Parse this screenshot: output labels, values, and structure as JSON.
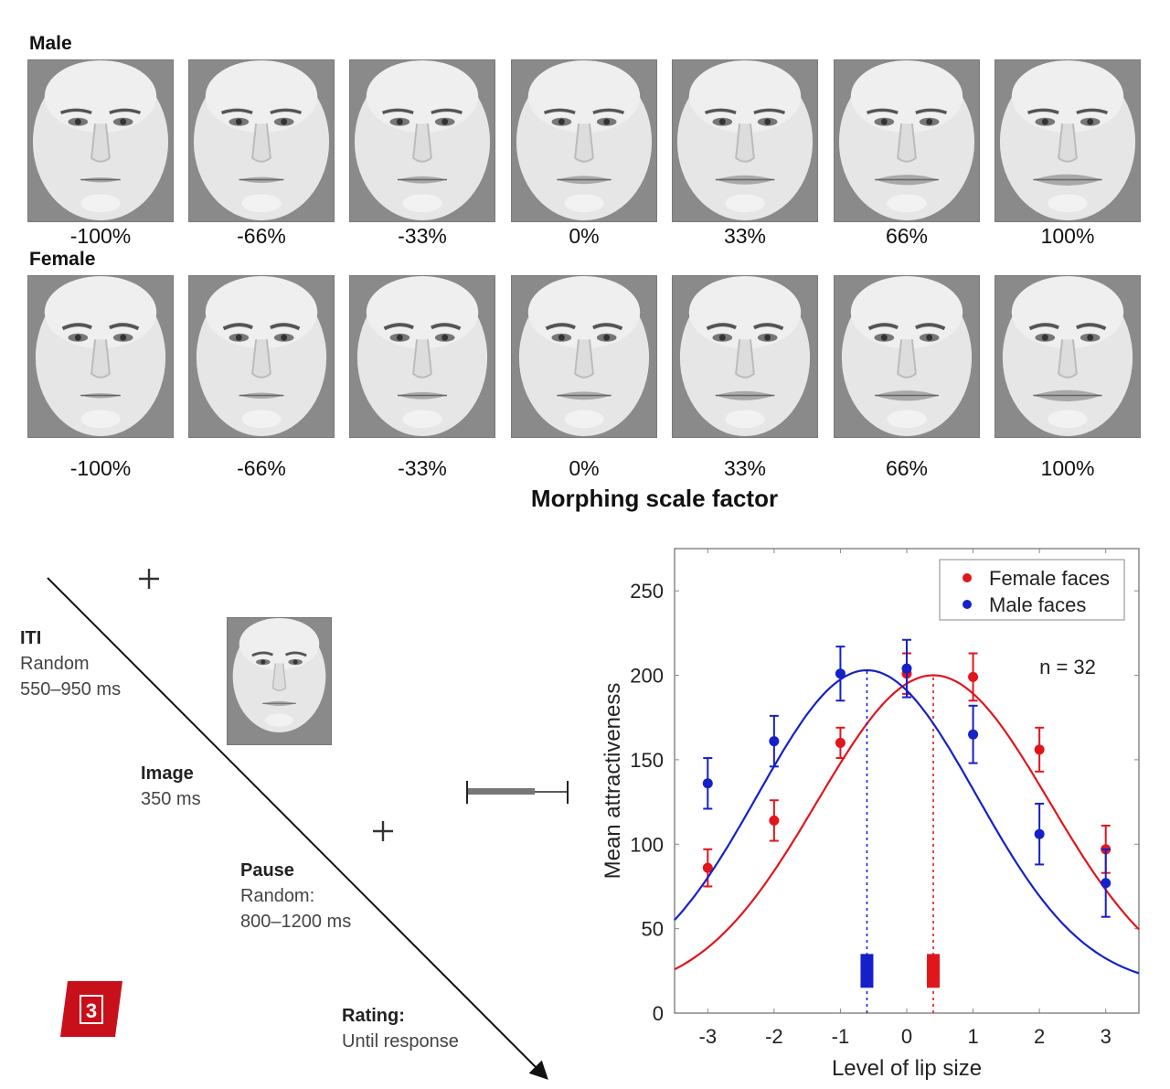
{
  "stimuli": {
    "male_label": "Male",
    "female_label": "Female",
    "morph_levels": [
      "-100%",
      "-66%",
      "-33%",
      "0%",
      "33%",
      "66%",
      "100%"
    ],
    "xlabel": "Morphing scale factor"
  },
  "timeline": {
    "steps": [
      {
        "title": "ITI",
        "lines": [
          "Random",
          "550–950 ms"
        ]
      },
      {
        "title": "Image",
        "lines": [
          "350 ms"
        ]
      },
      {
        "title": "Pause",
        "lines": [
          "Random:",
          "800–1200 ms"
        ]
      },
      {
        "title": "Rating:",
        "lines": [
          "Until response"
        ]
      }
    ],
    "fixation_symbol": "+",
    "badge_number": "3"
  },
  "colors": {
    "female": "#e0161c",
    "male": "#1520c8",
    "badge": "#c8101a"
  },
  "chart_data": {
    "type": "scatter",
    "title": "",
    "xlabel": "Level of lip size",
    "ylabel": "Mean attractiveness",
    "xlim": [
      -3.5,
      3.5
    ],
    "ylim": [
      0,
      275
    ],
    "xticks": [
      -3,
      -2,
      -1,
      0,
      1,
      2,
      3
    ],
    "yticks": [
      0,
      50,
      100,
      150,
      200,
      250
    ],
    "annotation": "n = 32",
    "legend_position": "top-right",
    "x": [
      -3,
      -2,
      -1,
      0,
      1,
      2,
      3
    ],
    "series": [
      {
        "name": "Female faces",
        "values": [
          86,
          114,
          160,
          201,
          199,
          156,
          97
        ],
        "error": [
          11,
          12,
          9,
          12,
          14,
          13,
          14
        ],
        "fit_peak_x": 0.4,
        "fit_peak_y": 200,
        "peak_marker_x": 0.4
      },
      {
        "name": "Male faces",
        "values": [
          136,
          161,
          201,
          204,
          165,
          106,
          77
        ],
        "error": [
          15,
          15,
          16,
          17,
          17,
          18,
          20
        ],
        "fit_peak_x": -0.6,
        "fit_peak_y": 203,
        "peak_marker_x": -0.6
      }
    ]
  }
}
